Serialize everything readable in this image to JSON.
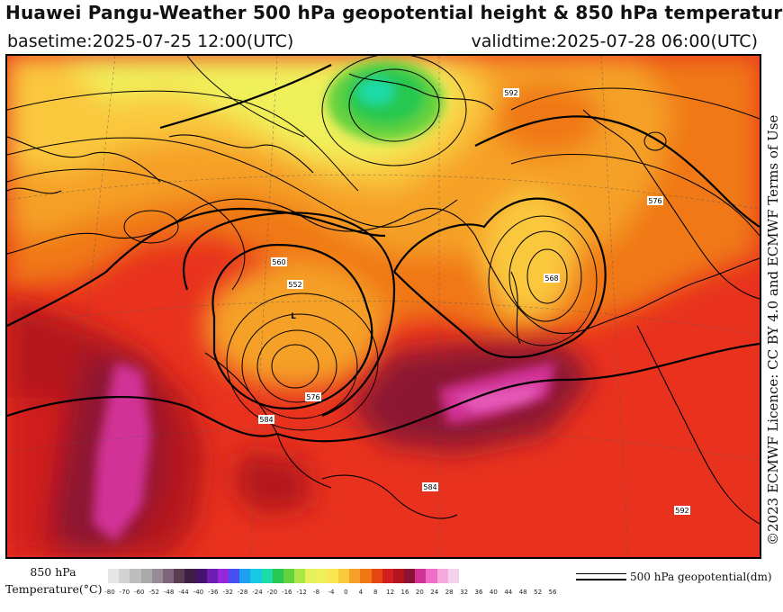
{
  "header": {
    "title": "Huawei Pangu-Weather 500 hPa geopotential height & 850 hPa temperature",
    "basetime": "basetime:2025-07-25 12:00(UTC)",
    "validtime": "validtime:2025-07-28 06:00(UTC)"
  },
  "licence": "©2023 ECMWF Licence: CC BY 4.0 and ECMWF Terms of Use",
  "legend": {
    "temperature_label_line1": "850 hPa",
    "temperature_label_line2": "Temperature(°C)",
    "geopotential_label": "500 hPa geopotential(dm)",
    "ticks": [
      "-80",
      "-70",
      "-60",
      "-52",
      "-48",
      "-44",
      "-40",
      "-36",
      "-32",
      "-28",
      "-24",
      "-20",
      "-16",
      "-12",
      "-8",
      "-4",
      "0",
      "4",
      "8",
      "12",
      "16",
      "20",
      "24",
      "28",
      "32",
      "36",
      "40",
      "44",
      "48",
      "52",
      "56"
    ],
    "colors": [
      "#e6e6e6",
      "#d2d2d2",
      "#bebebe",
      "#aaaaaa",
      "#968c96",
      "#7d6478",
      "#5a3c55",
      "#3c1e46",
      "#46146e",
      "#6e1eb4",
      "#9628dc",
      "#4650f0",
      "#1ea0f0",
      "#14c8e6",
      "#1edcaa",
      "#28c850",
      "#64d23c",
      "#aae646",
      "#e6f05a",
      "#f0f05a",
      "#fae650",
      "#fac83c",
      "#f5a028",
      "#f07814",
      "#e64614",
      "#d21e1e",
      "#b4141e",
      "#8c1432",
      "#d23296",
      "#f06ec8",
      "#f5aade",
      "#f5d2eb"
    ],
    "colors_semantic": "850 hPa temperature color scale from cold (grey/purple/blue) to hot (red/magenta/pink)"
  },
  "map": {
    "contour_labels": [
      "552",
      "560",
      "568",
      "576",
      "584",
      "592"
    ],
    "low_marker": "L"
  }
}
